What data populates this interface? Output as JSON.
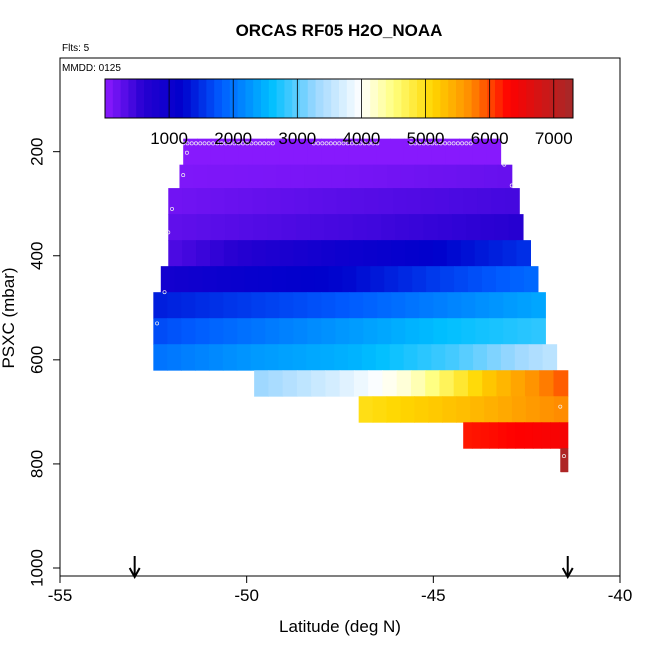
{
  "chart_data": {
    "type": "heatmap",
    "title": "ORCAS RF05 H2O_NOAA",
    "annotations": {
      "flights": "Flts: 5",
      "date": "MMDD: 0125"
    },
    "xlabel": "Latitude (deg N)",
    "ylabel": "PSXC (mbar)",
    "xlim": [
      -55,
      -40
    ],
    "ylim": [
      1000,
      20
    ],
    "x_ticks": [
      -55,
      -50,
      -45,
      -40
    ],
    "y_ticks": [
      200,
      400,
      600,
      800,
      1000
    ],
    "colorbar": {
      "min": 0,
      "max": 7300,
      "ticks": [
        1000,
        2000,
        3000,
        4000,
        5000,
        6000,
        7000
      ],
      "stops": [
        {
          "v": 0,
          "c": "#8c1aff"
        },
        {
          "v": 600,
          "c": "#2600d1"
        },
        {
          "v": 1200,
          "c": "#0000cc"
        },
        {
          "v": 1800,
          "c": "#005bff"
        },
        {
          "v": 2600,
          "c": "#00bfff"
        },
        {
          "v": 3300,
          "c": "#9fd8ff"
        },
        {
          "v": 4000,
          "c": "#ffffff"
        },
        {
          "v": 4500,
          "c": "#ffff7f"
        },
        {
          "v": 5100,
          "c": "#ffd700"
        },
        {
          "v": 5700,
          "c": "#ff8c00"
        },
        {
          "v": 6300,
          "c": "#ff0000"
        },
        {
          "v": 7300,
          "c": "#a52a2a"
        }
      ]
    },
    "rows": [
      {
        "p": [
          175,
          225
        ],
        "x": [
          -51.7,
          -43.2
        ],
        "values": [
          30,
          30,
          30
        ]
      },
      {
        "p": [
          225,
          270
        ],
        "x": [
          -51.8,
          -42.9
        ],
        "values": [
          80,
          120,
          220
        ]
      },
      {
        "p": [
          270,
          320
        ],
        "x": [
          -52.1,
          -42.7
        ],
        "values": [
          160,
          300,
          420
        ]
      },
      {
        "p": [
          320,
          370
        ],
        "x": [
          -52.1,
          -42.6
        ],
        "values": [
          260,
          420,
          600
        ]
      },
      {
        "p": [
          370,
          420
        ],
        "x": [
          -52.1,
          -42.4
        ],
        "values": [
          380,
          700,
          1000,
          1200,
          1500
        ]
      },
      {
        "p": [
          420,
          470
        ],
        "x": [
          -52.3,
          -42.2
        ],
        "values": [
          900,
          1100,
          1250,
          1600,
          1900
        ]
      },
      {
        "p": [
          470,
          520
        ],
        "x": [
          -52.5,
          -42.0
        ],
        "values": [
          1400,
          1600,
          1800,
          2100,
          2400
        ]
      },
      {
        "p": [
          520,
          570
        ],
        "x": [
          -52.5,
          -42.0
        ],
        "values": [
          1700,
          2000,
          2300,
          2600,
          2800
        ]
      },
      {
        "p": [
          570,
          620
        ],
        "x": [
          -52.5,
          -41.7
        ],
        "values": [
          2000,
          2300,
          2500,
          2900,
          3500
        ]
      },
      {
        "p": [
          620,
          670
        ],
        "x": [
          -49.8,
          -41.4
        ],
        "values": [
          3300,
          3700,
          4200,
          5200,
          5900
        ]
      },
      {
        "p": [
          670,
          720
        ],
        "x": [
          -47.0,
          -41.4
        ],
        "values": [
          5000,
          5300,
          5700
        ]
      },
      {
        "p": [
          720,
          770
        ],
        "x": [
          -44.2,
          -41.4
        ],
        "values": [
          6200,
          6400
        ]
      },
      {
        "p": [
          770,
          815
        ],
        "x": [
          -41.6,
          -41.4
        ],
        "values": [
          7200
        ]
      }
    ],
    "flight_markers": [
      {
        "x": [
          -51.7,
          -49.3
        ],
        "p": 184
      },
      {
        "x": [
          -48.2,
          -46.5
        ],
        "p": 184
      },
      {
        "x": [
          -45.6,
          -44.0
        ],
        "p": 184
      },
      {
        "x": [
          -51.6,
          -51.6
        ],
        "p": 202
      },
      {
        "x": [
          -51.7,
          -51.7
        ],
        "p": 245
      },
      {
        "x": [
          -52.0,
          -52.0
        ],
        "p": 310
      },
      {
        "x": [
          -52.1,
          -52.1
        ],
        "p": 355
      },
      {
        "x": [
          -52.2,
          -52.2
        ],
        "p": 470
      },
      {
        "x": [
          -52.4,
          -52.4
        ],
        "p": 530
      },
      {
        "x": [
          -41.6,
          -41.6
        ],
        "p": 690
      },
      {
        "x": [
          -41.5,
          -41.5
        ],
        "p": 785
      },
      {
        "x": [
          -43.1,
          -43.1
        ],
        "p": 225
      },
      {
        "x": [
          -42.9,
          -42.9
        ],
        "p": 265
      }
    ],
    "arrows": [
      -53.0,
      -41.4
    ]
  }
}
